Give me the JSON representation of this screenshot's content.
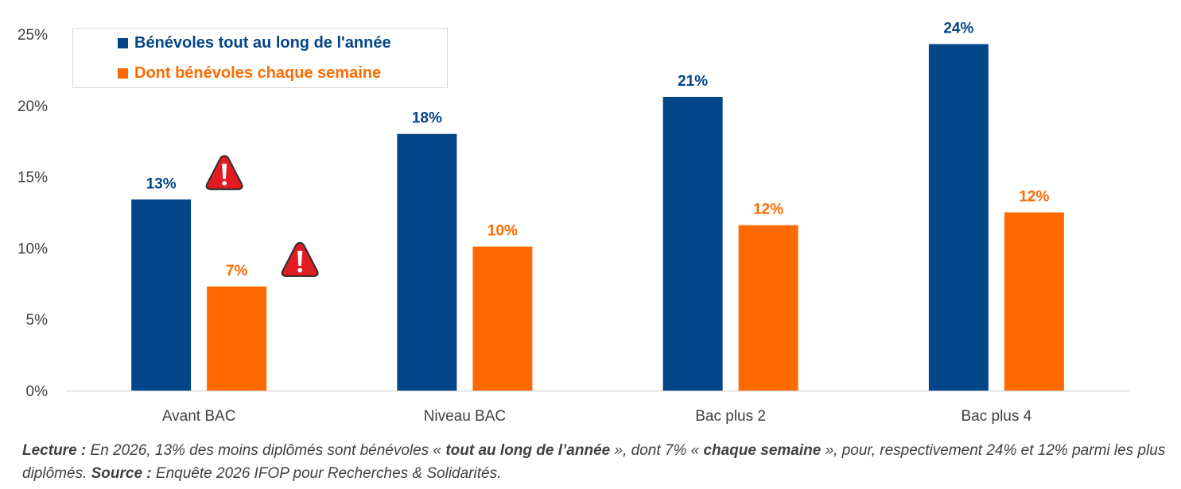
{
  "chart_data": {
    "type": "bar",
    "categories": [
      "Avant BAC",
      "Niveau BAC",
      "Bac plus 2",
      "Bac plus 4"
    ],
    "series": [
      {
        "name": "Bénévoles tout au long de l'année",
        "color": "#024589",
        "values": [
          13.4,
          18.0,
          20.6,
          24.3
        ],
        "labels": [
          "13%",
          "18%",
          "21%",
          "24%"
        ]
      },
      {
        "name": "Dont bénévoles chaque semaine",
        "color": "#ff6a00",
        "values": [
          7.3,
          10.1,
          11.6,
          12.5
        ],
        "labels": [
          "7%",
          "10%",
          "12%",
          "12%"
        ]
      }
    ],
    "yticks": [
      "0%",
      "5%",
      "10%",
      "15%",
      "20%",
      "25%"
    ],
    "ylim": [
      0,
      25
    ],
    "grid": false,
    "legend": "top-left",
    "annotations": [
      {
        "icon": "warning-icon",
        "category": "Avant BAC",
        "series": 0
      },
      {
        "icon": "warning-icon",
        "category": "Avant BAC",
        "series": 1
      }
    ]
  },
  "footnote": {
    "p1": "Lecture : ",
    "p2": "En 2026, 13% des moins diplômés sont bénévoles « ",
    "p3": "tout au long de l’année",
    "p4": " », dont 7% « ",
    "p5": "chaque semaine",
    "p6": " », pour, respectivement 24% et 12% parmi les plus diplômés. ",
    "p7": "Source : ",
    "p8": "Enquête 2026 IFOP pour Recherches & Solidarités."
  }
}
